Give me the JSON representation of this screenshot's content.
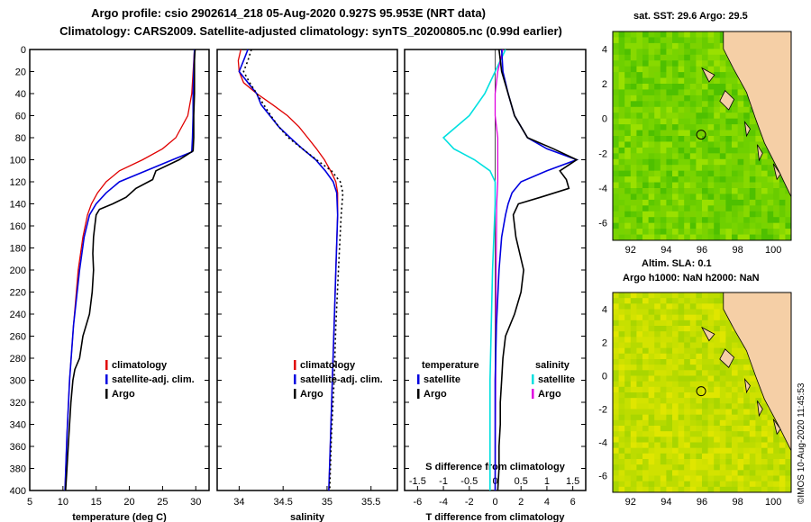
{
  "header": {
    "title_line1": "Argo profile: csio 2902614_218 05-Aug-2020 0.927S 95.953E (NRT data)",
    "title_line2": "Climatology: CARS2009. Satellite-adjusted climatology: synTS_20200805.nc (0.99d earlier)"
  },
  "colors": {
    "climatology": "#e00000",
    "satellite": "#0000e0",
    "argo": "#000000",
    "sat_t_diff": "#00e0e0",
    "argo_s_diff": "#e000e0"
  },
  "chart_data": [
    {
      "type": "line",
      "name": "temperature",
      "xlabel": "temperature (deg C)",
      "ylabel": "depth",
      "xlim": [
        5,
        32
      ],
      "ylim": [
        400,
        0
      ],
      "xticks": [
        5,
        10,
        15,
        20,
        25,
        30
      ],
      "yticks": [
        0,
        20,
        40,
        60,
        80,
        100,
        120,
        140,
        160,
        180,
        200,
        220,
        240,
        260,
        280,
        300,
        320,
        340,
        360,
        380,
        400
      ],
      "legend": [
        "climatology",
        "satellite-adj. clim.",
        "Argo"
      ],
      "series": [
        {
          "name": "climatology",
          "depth": [
            0,
            20,
            40,
            60,
            80,
            90,
            100,
            110,
            120,
            130,
            140,
            150,
            170,
            200,
            250,
            300,
            350,
            400
          ],
          "values": [
            29.8,
            29.6,
            29.4,
            28.8,
            27.0,
            25.0,
            22.0,
            18.5,
            16.5,
            15.2,
            14.3,
            13.7,
            13.0,
            12.3,
            11.6,
            11.0,
            10.6,
            10.3
          ]
        },
        {
          "name": "satellite-adj. clim.",
          "depth": [
            0,
            20,
            40,
            60,
            80,
            93,
            100,
            110,
            120,
            130,
            140,
            150,
            170,
            200,
            250,
            300,
            350,
            400
          ],
          "values": [
            29.8,
            29.7,
            29.6,
            29.6,
            29.5,
            29.4,
            26.5,
            22.5,
            18.5,
            16.5,
            15.0,
            14.0,
            13.2,
            12.5,
            11.6,
            11.0,
            10.6,
            10.3
          ]
        },
        {
          "name": "Argo",
          "depth": [
            0,
            10,
            20,
            40,
            60,
            80,
            92,
            100,
            110,
            118,
            126,
            134,
            140,
            145,
            150,
            160,
            170,
            185,
            200,
            220,
            240,
            260,
            280,
            290,
            300,
            320,
            340,
            360,
            380,
            400
          ],
          "values": [
            29.9,
            29.8,
            29.8,
            29.8,
            29.7,
            29.7,
            29.6,
            27.5,
            24.0,
            23.5,
            21.0,
            19.5,
            17.5,
            15.5,
            15.0,
            14.8,
            14.6,
            14.5,
            14.6,
            14.4,
            14.0,
            13.0,
            12.5,
            11.8,
            11.5,
            11.2,
            11.0,
            10.8,
            10.6,
            10.4
          ]
        }
      ]
    },
    {
      "type": "line",
      "name": "salinity",
      "xlabel": "salinity",
      "ylabel": "depth",
      "xlim": [
        33.75,
        35.8
      ],
      "ylim": [
        400,
        0
      ],
      "xticks": [
        34,
        34.5,
        35,
        35.5
      ],
      "yticks": [
        0,
        20,
        40,
        60,
        80,
        100,
        120,
        140,
        160,
        180,
        200,
        220,
        240,
        260,
        280,
        300,
        320,
        340,
        360,
        380,
        400
      ],
      "legend": [
        "climatology",
        "satellite-adj. clim.",
        "Argo"
      ],
      "series": [
        {
          "name": "climatology",
          "depth": [
            0,
            10,
            20,
            30,
            40,
            50,
            60,
            70,
            80,
            90,
            100,
            110,
            120,
            130,
            150,
            200,
            250,
            300,
            350,
            400
          ],
          "values": [
            34.02,
            33.99,
            34.0,
            34.05,
            34.2,
            34.38,
            34.55,
            34.68,
            34.78,
            34.88,
            34.97,
            35.04,
            35.1,
            35.12,
            35.12,
            35.1,
            35.08,
            35.06,
            35.04,
            35.02
          ]
        },
        {
          "name": "satellite-adj. clim.",
          "depth": [
            0,
            10,
            20,
            30,
            40,
            50,
            60,
            70,
            80,
            90,
            100,
            110,
            120,
            130,
            150,
            200,
            250,
            300,
            350,
            400
          ],
          "values": [
            34.1,
            34.05,
            34.0,
            34.1,
            34.2,
            34.25,
            34.35,
            34.45,
            34.58,
            34.72,
            34.87,
            34.98,
            35.07,
            35.11,
            35.12,
            35.1,
            35.08,
            35.06,
            35.04,
            35.02
          ]
        },
        {
          "name": "Argo",
          "depth": [
            0,
            10,
            20,
            30,
            40,
            50,
            60,
            70,
            80,
            90,
            100,
            110,
            120,
            130,
            150,
            200,
            250,
            300,
            350,
            400
          ],
          "values": [
            34.14,
            34.1,
            34.05,
            34.12,
            34.2,
            34.28,
            34.36,
            34.45,
            34.56,
            34.72,
            34.88,
            35.05,
            35.15,
            35.18,
            35.16,
            35.13,
            35.1,
            35.08,
            35.05,
            35.03
          ]
        }
      ]
    },
    {
      "type": "line",
      "name": "difference from climatology",
      "xlabel": "T difference from climatology",
      "xlabel2": "S difference from climatology",
      "ylabel": "depth",
      "xlim": [
        -7,
        7
      ],
      "ylim": [
        400,
        0
      ],
      "xticks": [
        -6,
        -4,
        -2,
        0,
        2,
        4,
        6
      ],
      "xticks2": [
        "-1.5",
        "-1",
        "-0.5",
        "0",
        "0.5",
        "1",
        "1.5"
      ],
      "yticks": [
        0,
        20,
        40,
        60,
        80,
        100,
        120,
        140,
        160,
        180,
        200,
        220,
        240,
        260,
        280,
        300,
        320,
        340,
        360,
        380,
        400
      ],
      "legend_temperature_title": "temperature",
      "legend_salinity_title": "salinity",
      "legend": [
        "satellite",
        "Argo",
        "satellite",
        "Argo"
      ],
      "series": [
        {
          "name": "temperature satellite",
          "depth": [
            0,
            20,
            40,
            60,
            80,
            90,
            100,
            110,
            120,
            130,
            140,
            150,
            170,
            200,
            250,
            300,
            350,
            400
          ],
          "values": [
            0.5,
            0.6,
            1.0,
            1.5,
            2.5,
            4.0,
            6.3,
            4.0,
            2.0,
            1.3,
            1.0,
            0.8,
            0.5,
            0.3,
            0.1,
            0.0,
            0.0,
            0.0
          ]
        },
        {
          "name": "temperature Argo",
          "depth": [
            0,
            20,
            40,
            60,
            80,
            90,
            100,
            110,
            118,
            126,
            134,
            140,
            150,
            170,
            200,
            220,
            240,
            260,
            280,
            300,
            320,
            340,
            360,
            380,
            400
          ],
          "values": [
            0.3,
            0.5,
            1.0,
            1.5,
            2.5,
            4.5,
            6.3,
            5.0,
            5.5,
            5.7,
            3.5,
            1.8,
            1.4,
            1.6,
            2.2,
            2.0,
            1.5,
            0.8,
            0.6,
            0.5,
            0.4,
            0.4,
            0.3,
            0.3,
            0.2
          ]
        },
        {
          "name": "salinity satellite",
          "depth": [
            0,
            20,
            40,
            60,
            80,
            90,
            100,
            110,
            120,
            140,
            200,
            300,
            400
          ],
          "values": [
            0.2,
            0.0,
            -0.2,
            -0.5,
            -1.0,
            -0.8,
            -0.4,
            -0.1,
            0.0,
            0.0,
            -0.05,
            -0.1,
            -0.1
          ]
        },
        {
          "name": "salinity Argo",
          "depth": [
            0,
            20,
            40,
            60,
            80,
            100,
            120,
            140,
            200,
            300,
            400
          ],
          "values": [
            0.15,
            0.05,
            0.0,
            0.0,
            0.05,
            0.05,
            0.05,
            0.03,
            0.02,
            0.01,
            0.0
          ]
        }
      ]
    },
    {
      "type": "heatmap",
      "name": "sat SST map",
      "title": "sat. SST: 29.6 Argo: 29.5",
      "xlim": [
        91,
        101
      ],
      "ylim": [
        -7,
        5
      ],
      "xticks": [
        92,
        94,
        96,
        98,
        100
      ],
      "yticks": [
        -6,
        -4,
        -2,
        0,
        2,
        4
      ],
      "argo_position": [
        95.953,
        -0.927
      ]
    },
    {
      "type": "heatmap",
      "name": "altimetry SLA map",
      "title": "Altim. SLA: 0.1",
      "subtitle": "Argo h1000: NaN h2000: NaN",
      "xlim": [
        91,
        101
      ],
      "ylim": [
        -7,
        5
      ],
      "xticks": [
        92,
        94,
        96,
        98,
        100
      ],
      "yticks": [
        -6,
        -4,
        -2,
        0,
        2,
        4
      ],
      "argo_position": [
        95.953,
        -0.927
      ]
    }
  ],
  "credit": "©IMOS 10-Aug-2020 11:45:53"
}
